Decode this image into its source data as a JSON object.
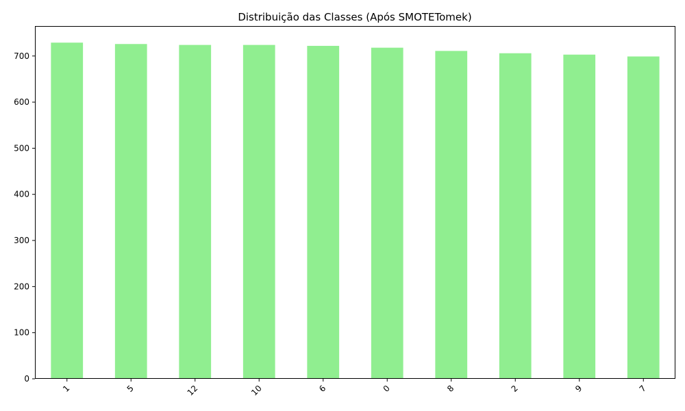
{
  "chart_data": {
    "type": "bar",
    "title": "Distribuição das Classes (Após SMOTETomek)",
    "xlabel": "",
    "ylabel": "",
    "categories": [
      "1",
      "5",
      "12",
      "10",
      "6",
      "0",
      "8",
      "2",
      "9",
      "7"
    ],
    "values": [
      729,
      726,
      724,
      724,
      722,
      718,
      711,
      706,
      703,
      699
    ],
    "ylim": [
      0,
      765
    ],
    "yticks": [
      0,
      100,
      200,
      300,
      400,
      500,
      600,
      700
    ],
    "x_tick_rotation": 45,
    "grid": false,
    "legend": "none",
    "colors": {
      "bar": "#90ee90",
      "axis": "#000000",
      "background": "#ffffff"
    }
  }
}
